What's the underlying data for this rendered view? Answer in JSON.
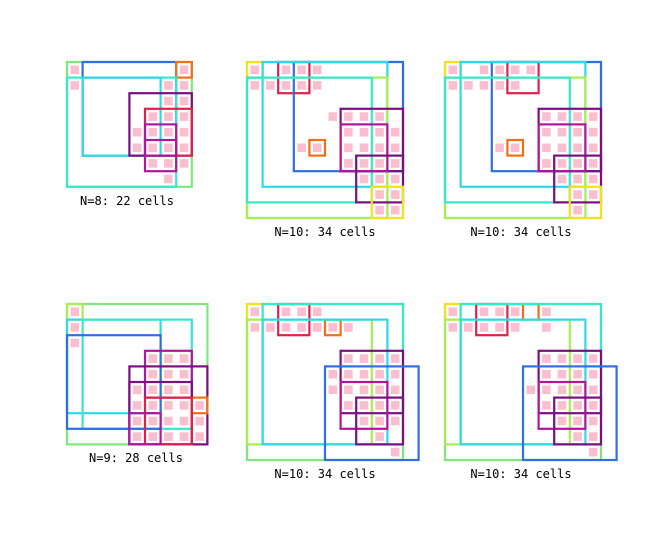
{
  "colors": {
    "background": "#ffffff",
    "cell": "#f9bfcf",
    "palette": {
      "green": "#7ee87e",
      "blue": "#2f6fdf",
      "cyan": "#2fd8e8",
      "teal": "#36e8c8",
      "lime": "#a6ee52",
      "yellow": "#f4e01c",
      "orange": "#f07018",
      "red": "#e0204a",
      "magenta": "#b0159c",
      "purple": "#7a1080"
    }
  },
  "panels": [
    {
      "caption": "N=8: 22 cells",
      "n": 8,
      "cells": [
        [
          0,
          0
        ],
        [
          0,
          7
        ],
        [
          1,
          0
        ],
        [
          1,
          6
        ],
        [
          1,
          7
        ],
        [
          2,
          6
        ],
        [
          2,
          7
        ],
        [
          3,
          5
        ],
        [
          3,
          6
        ],
        [
          3,
          7
        ],
        [
          4,
          4
        ],
        [
          4,
          5
        ],
        [
          4,
          6
        ],
        [
          4,
          7
        ],
        [
          5,
          4
        ],
        [
          5,
          5
        ],
        [
          5,
          6
        ],
        [
          5,
          7
        ],
        [
          6,
          5
        ],
        [
          6,
          6
        ],
        [
          6,
          7
        ],
        [
          7,
          6
        ]
      ],
      "squares": [
        {
          "r": 0,
          "c": 0,
          "s": 8,
          "color": "green"
        },
        {
          "r": 0,
          "c": 1,
          "s": 6,
          "color": "blue"
        },
        {
          "r": 0,
          "c": 7,
          "s": 1,
          "color": "orange"
        },
        {
          "r": 1,
          "c": 0,
          "s": 7,
          "color": "teal"
        },
        {
          "r": 1,
          "c": 1,
          "s": 5,
          "color": "cyan"
        },
        {
          "r": 2,
          "c": 4,
          "s": 4,
          "color": "purple"
        },
        {
          "r": 3,
          "c": 5,
          "s": 3,
          "color": "red"
        },
        {
          "r": 4,
          "c": 5,
          "s": 2,
          "color": "magenta"
        },
        {
          "r": 5,
          "c": 5,
          "s": 2,
          "color": "magenta"
        }
      ]
    },
    {
      "caption": "N=10: 34 cells",
      "n": 10,
      "cells": [
        [
          0,
          0
        ],
        [
          0,
          2
        ],
        [
          0,
          3
        ],
        [
          0,
          4
        ],
        [
          1,
          0
        ],
        [
          1,
          1
        ],
        [
          1,
          2
        ],
        [
          1,
          3
        ],
        [
          1,
          4
        ],
        [
          3,
          5
        ],
        [
          3,
          6
        ],
        [
          3,
          7
        ],
        [
          3,
          8
        ],
        [
          4,
          6
        ],
        [
          4,
          7
        ],
        [
          4,
          8
        ],
        [
          4,
          9
        ],
        [
          5,
          3
        ],
        [
          5,
          4
        ],
        [
          5,
          6
        ],
        [
          5,
          7
        ],
        [
          5,
          8
        ],
        [
          5,
          9
        ],
        [
          6,
          6
        ],
        [
          6,
          7
        ],
        [
          6,
          8
        ],
        [
          6,
          9
        ],
        [
          7,
          7
        ],
        [
          7,
          8
        ],
        [
          7,
          9
        ],
        [
          8,
          8
        ],
        [
          8,
          9
        ],
        [
          9,
          8
        ],
        [
          9,
          9
        ]
      ],
      "squares": [
        {
          "r": 0,
          "c": 0,
          "s": 10,
          "color": "green"
        },
        {
          "r": 0,
          "c": 0,
          "s": 1,
          "color": "yellow"
        },
        {
          "r": 0,
          "c": 2,
          "s": 2,
          "color": "red"
        },
        {
          "r": 0,
          "c": 3,
          "s": 7,
          "color": "blue"
        },
        {
          "r": 0,
          "c": 1,
          "s": 8,
          "color": "cyan"
        },
        {
          "r": 1,
          "c": 0,
          "s": 9,
          "color": "lime"
        },
        {
          "r": 1,
          "c": 0,
          "s": 8,
          "color": "teal"
        },
        {
          "r": 3,
          "c": 6,
          "s": 4,
          "color": "purple"
        },
        {
          "r": 4,
          "c": 6,
          "s": 3,
          "color": "magenta"
        },
        {
          "r": 5,
          "c": 4,
          "s": 1,
          "color": "orange"
        },
        {
          "r": 6,
          "c": 7,
          "s": 3,
          "color": "purple"
        },
        {
          "r": 8,
          "c": 8,
          "s": 2,
          "color": "yellow"
        }
      ]
    },
    {
      "caption": "N=10: 34 cells",
      "n": 10,
      "cells": [
        [
          0,
          0
        ],
        [
          0,
          2
        ],
        [
          0,
          3
        ],
        [
          0,
          4
        ],
        [
          0,
          5
        ],
        [
          1,
          0
        ],
        [
          1,
          1
        ],
        [
          1,
          2
        ],
        [
          1,
          3
        ],
        [
          1,
          4
        ],
        [
          3,
          6
        ],
        [
          3,
          7
        ],
        [
          3,
          8
        ],
        [
          3,
          9
        ],
        [
          4,
          6
        ],
        [
          4,
          7
        ],
        [
          4,
          8
        ],
        [
          4,
          9
        ],
        [
          5,
          3
        ],
        [
          5,
          4
        ],
        [
          5,
          6
        ],
        [
          5,
          7
        ],
        [
          5,
          8
        ],
        [
          5,
          9
        ],
        [
          6,
          6
        ],
        [
          6,
          7
        ],
        [
          6,
          8
        ],
        [
          6,
          9
        ],
        [
          7,
          7
        ],
        [
          7,
          8
        ],
        [
          7,
          9
        ],
        [
          8,
          8
        ],
        [
          8,
          9
        ],
        [
          9,
          8
        ]
      ],
      "squares": [
        {
          "r": 0,
          "c": 0,
          "s": 10,
          "color": "green"
        },
        {
          "r": 0,
          "c": 0,
          "s": 1,
          "color": "yellow"
        },
        {
          "r": 0,
          "c": 4,
          "s": 2,
          "color": "red"
        },
        {
          "r": 0,
          "c": 3,
          "s": 7,
          "color": "blue"
        },
        {
          "r": 0,
          "c": 1,
          "s": 8,
          "color": "cyan"
        },
        {
          "r": 1,
          "c": 0,
          "s": 9,
          "color": "lime"
        },
        {
          "r": 1,
          "c": 0,
          "s": 8,
          "color": "teal"
        },
        {
          "r": 3,
          "c": 6,
          "s": 4,
          "color": "purple"
        },
        {
          "r": 4,
          "c": 6,
          "s": 3,
          "color": "magenta"
        },
        {
          "r": 5,
          "c": 4,
          "s": 1,
          "color": "orange"
        },
        {
          "r": 6,
          "c": 7,
          "s": 3,
          "color": "purple"
        },
        {
          "r": 8,
          "c": 8,
          "s": 2,
          "color": "yellow"
        }
      ]
    },
    {
      "caption": "N=9: 28 cells",
      "n": 9,
      "cells": [
        [
          0,
          0
        ],
        [
          1,
          0
        ],
        [
          3,
          5
        ],
        [
          3,
          6
        ],
        [
          3,
          7
        ],
        [
          4,
          5
        ],
        [
          4,
          6
        ],
        [
          4,
          7
        ],
        [
          5,
          4
        ],
        [
          5,
          5
        ],
        [
          5,
          6
        ],
        [
          5,
          7
        ],
        [
          6,
          4
        ],
        [
          6,
          5
        ],
        [
          6,
          6
        ],
        [
          6,
          7
        ],
        [
          6,
          8
        ],
        [
          7,
          4
        ],
        [
          7,
          5
        ],
        [
          7,
          6
        ],
        [
          7,
          7
        ],
        [
          7,
          8
        ],
        [
          8,
          4
        ],
        [
          8,
          5
        ],
        [
          8,
          6
        ],
        [
          8,
          7
        ],
        [
          8,
          8
        ],
        [
          2,
          0
        ]
      ],
      "squares": [
        {
          "r": 0,
          "c": 0,
          "s": 9,
          "color": "green"
        },
        {
          "r": 0,
          "c": 0,
          "s": 1,
          "color": "lime"
        },
        {
          "r": 1,
          "c": 0,
          "s": 6,
          "color": "cyan"
        },
        {
          "r": 1,
          "c": 1,
          "s": 7,
          "color": "teal"
        },
        {
          "r": 2,
          "c": 0,
          "s": 6,
          "color": "blue"
        },
        {
          "r": 3,
          "c": 5,
          "s": 3,
          "color": "magenta"
        },
        {
          "r": 5,
          "c": 4,
          "s": 4,
          "color": "purple"
        },
        {
          "r": 4,
          "c": 4,
          "s": 5,
          "color": "purple"
        },
        {
          "r": 6,
          "c": 8,
          "s": 1,
          "color": "orange"
        },
        {
          "r": 6,
          "c": 5,
          "s": 3,
          "color": "red"
        },
        {
          "r": 7,
          "c": 4,
          "s": 2,
          "color": "magenta"
        }
      ]
    },
    {
      "caption": "N=10: 34 cells",
      "n": 10,
      "cells": [
        [
          0,
          0
        ],
        [
          0,
          2
        ],
        [
          0,
          3
        ],
        [
          0,
          4
        ],
        [
          1,
          0
        ],
        [
          1,
          1
        ],
        [
          1,
          2
        ],
        [
          1,
          3
        ],
        [
          1,
          4
        ],
        [
          1,
          5
        ],
        [
          1,
          6
        ],
        [
          3,
          6
        ],
        [
          3,
          7
        ],
        [
          3,
          8
        ],
        [
          3,
          9
        ],
        [
          4,
          5
        ],
        [
          4,
          6
        ],
        [
          4,
          7
        ],
        [
          4,
          8
        ],
        [
          4,
          9
        ],
        [
          5,
          5
        ],
        [
          5,
          6
        ],
        [
          5,
          7
        ],
        [
          5,
          8
        ],
        [
          5,
          9
        ],
        [
          6,
          6
        ],
        [
          6,
          7
        ],
        [
          6,
          8
        ],
        [
          6,
          9
        ],
        [
          7,
          7
        ],
        [
          7,
          8
        ],
        [
          7,
          9
        ],
        [
          8,
          8
        ],
        [
          9,
          9
        ]
      ],
      "squares": [
        {
          "r": 0,
          "c": 0,
          "s": 10,
          "color": "green"
        },
        {
          "r": 0,
          "c": 0,
          "s": 1,
          "color": "yellow"
        },
        {
          "r": 0,
          "c": 2,
          "s": 2,
          "color": "red"
        },
        {
          "r": 1,
          "c": 5,
          "s": 1,
          "color": "orange"
        },
        {
          "r": 0,
          "c": 1,
          "s": 9,
          "color": "teal"
        },
        {
          "r": 1,
          "c": 0,
          "s": 8,
          "color": "lime"
        },
        {
          "r": 1,
          "c": 1,
          "s": 8,
          "color": "cyan"
        },
        {
          "r": 3,
          "c": 6,
          "s": 4,
          "color": "purple"
        },
        {
          "r": 4,
          "c": 5,
          "s": 6,
          "color": "blue"
        },
        {
          "r": 5,
          "c": 6,
          "s": 3,
          "color": "magenta"
        },
        {
          "r": 6,
          "c": 7,
          "s": 3,
          "color": "purple"
        }
      ]
    },
    {
      "caption": "N=10: 34 cells",
      "n": 10,
      "cells": [
        [
          0,
          0
        ],
        [
          0,
          2
        ],
        [
          0,
          3
        ],
        [
          0,
          4
        ],
        [
          0,
          6
        ],
        [
          1,
          0
        ],
        [
          1,
          1
        ],
        [
          1,
          2
        ],
        [
          1,
          3
        ],
        [
          1,
          4
        ],
        [
          3,
          6
        ],
        [
          3,
          7
        ],
        [
          3,
          8
        ],
        [
          3,
          9
        ],
        [
          4,
          6
        ],
        [
          4,
          7
        ],
        [
          4,
          8
        ],
        [
          4,
          9
        ],
        [
          5,
          5
        ],
        [
          5,
          6
        ],
        [
          5,
          7
        ],
        [
          5,
          8
        ],
        [
          5,
          9
        ],
        [
          6,
          6
        ],
        [
          6,
          7
        ],
        [
          6,
          8
        ],
        [
          6,
          9
        ],
        [
          7,
          7
        ],
        [
          7,
          8
        ],
        [
          7,
          9
        ],
        [
          8,
          8
        ],
        [
          8,
          9
        ],
        [
          9,
          9
        ],
        [
          1,
          6
        ]
      ],
      "squares": [
        {
          "r": 0,
          "c": 0,
          "s": 10,
          "color": "green"
        },
        {
          "r": 0,
          "c": 0,
          "s": 1,
          "color": "yellow"
        },
        {
          "r": 0,
          "c": 2,
          "s": 2,
          "color": "red"
        },
        {
          "r": 0,
          "c": 5,
          "s": 1,
          "color": "orange"
        },
        {
          "r": 0,
          "c": 1,
          "s": 9,
          "color": "teal"
        },
        {
          "r": 1,
          "c": 0,
          "s": 8,
          "color": "lime"
        },
        {
          "r": 1,
          "c": 1,
          "s": 8,
          "color": "cyan"
        },
        {
          "r": 3,
          "c": 6,
          "s": 4,
          "color": "purple"
        },
        {
          "r": 4,
          "c": 5,
          "s": 6,
          "color": "blue"
        },
        {
          "r": 5,
          "c": 6,
          "s": 3,
          "color": "magenta"
        },
        {
          "r": 6,
          "c": 7,
          "s": 3,
          "color": "purple"
        }
      ]
    }
  ]
}
